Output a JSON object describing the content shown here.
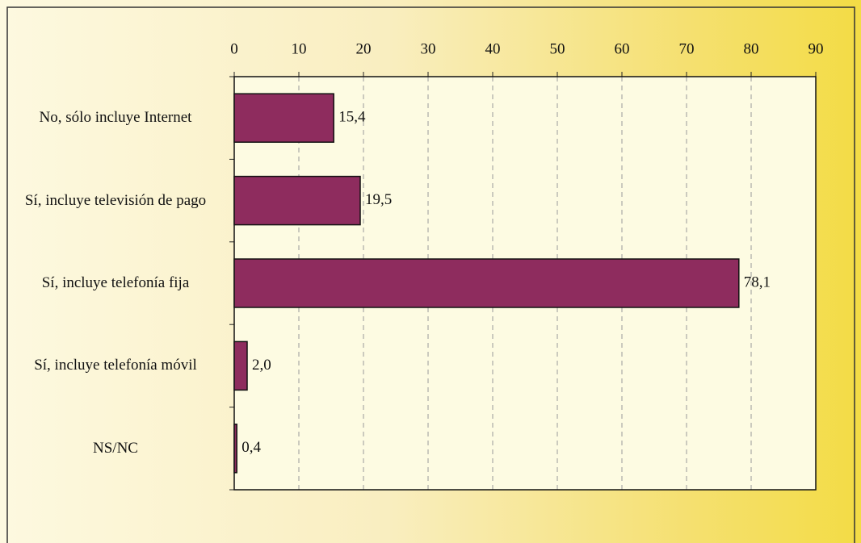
{
  "chart_data": {
    "type": "bar",
    "orientation": "horizontal",
    "categories": [
      "No, sólo incluye Internet",
      "Sí, incluye televisión de pago",
      "Sí, incluye telefonía fija",
      "Sí, incluye telefonía móvil",
      "NS/NC"
    ],
    "values": [
      15.4,
      19.5,
      78.1,
      2.0,
      0.4
    ],
    "value_labels": [
      "15,4",
      "19,5",
      "78,1",
      "2,0",
      "0,4"
    ],
    "color": "#8e2c5e",
    "xlim": [
      0,
      90
    ],
    "xticks": [
      0,
      10,
      20,
      30,
      40,
      50,
      60,
      70,
      80,
      90
    ],
    "grid": true
  }
}
